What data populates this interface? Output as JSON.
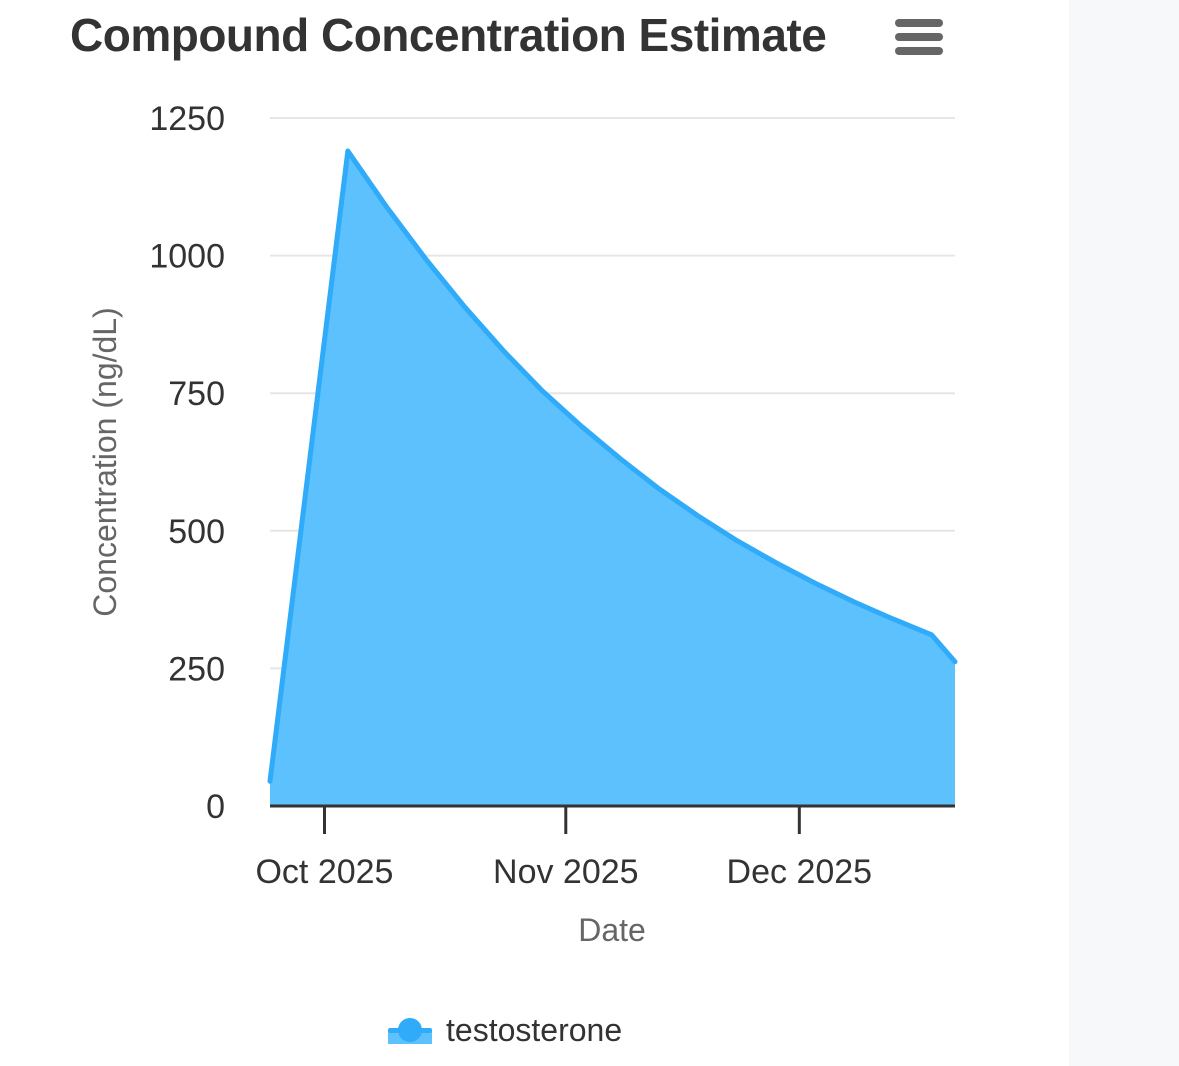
{
  "colors": {
    "series": "#2fabf9",
    "series_fill": "#5cc1fc",
    "grid": "#e6e6e6",
    "axis": "#333333",
    "title": "#333333",
    "axis_title": "#666666",
    "side_panel": "#f7f8fa"
  },
  "icons": {
    "menu": "hamburger-menu-icon"
  },
  "chart_data": {
    "type": "area",
    "title": "Compound Concentration Estimate",
    "xlabel": "Date",
    "ylabel": "Concentration (ng/dL)",
    "ylim": [
      0,
      1250
    ],
    "yticks": [
      0,
      250,
      500,
      750,
      1000,
      1250
    ],
    "xlim": [
      "2025-09-24",
      "2025-12-21"
    ],
    "xticks": [
      {
        "date": "2025-10-01",
        "label": "Oct 2025"
      },
      {
        "date": "2025-11-01",
        "label": "Nov 2025"
      },
      {
        "date": "2025-12-01",
        "label": "Dec 2025"
      }
    ],
    "grid": true,
    "legend_position": "bottom-center",
    "series": [
      {
        "name": "testosterone",
        "x": [
          "2025-09-24",
          "2025-10-04",
          "2025-10-09",
          "2025-10-14",
          "2025-10-19",
          "2025-10-24",
          "2025-10-29",
          "2025-11-03",
          "2025-11-08",
          "2025-11-13",
          "2025-11-18",
          "2025-11-23",
          "2025-11-28",
          "2025-12-03",
          "2025-12-08",
          "2025-12-13",
          "2025-12-18",
          "2025-12-21"
        ],
        "y": [
          45,
          1190,
          1088,
          994,
          907,
          827,
          754,
          690,
          631,
          576,
          527,
          482,
          442,
          405,
          371,
          340,
          311,
          262
        ]
      }
    ]
  }
}
